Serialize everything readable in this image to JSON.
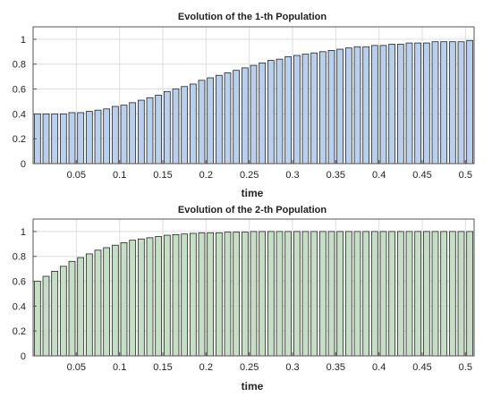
{
  "chart_data": [
    {
      "type": "bar",
      "title": "Evolution of the 1-th Population",
      "xlabel": "time",
      "ylabel": "",
      "xlim": [
        0,
        0.51
      ],
      "ylim": [
        0,
        1.1
      ],
      "x_ticks": [
        "0.05",
        "0.1",
        "0.15",
        "0.2",
        "0.25",
        "0.3",
        "0.35",
        "0.4",
        "0.45",
        "0.5"
      ],
      "y_ticks": [
        "0",
        "0.2",
        "0.4",
        "0.6",
        "0.8",
        "1"
      ],
      "grid": true,
      "bar_color": "#b8d0ee",
      "x": [
        0.0,
        0.01,
        0.02,
        0.03,
        0.04,
        0.05,
        0.06,
        0.07,
        0.08,
        0.09,
        0.1,
        0.11,
        0.12,
        0.13,
        0.14,
        0.15,
        0.16,
        0.17,
        0.18,
        0.19,
        0.2,
        0.21,
        0.22,
        0.23,
        0.24,
        0.25,
        0.26,
        0.27,
        0.28,
        0.29,
        0.3,
        0.31,
        0.32,
        0.33,
        0.34,
        0.35,
        0.36,
        0.37,
        0.38,
        0.39,
        0.4,
        0.41,
        0.42,
        0.43,
        0.44,
        0.45,
        0.46,
        0.47,
        0.48,
        0.49,
        0.5
      ],
      "values": [
        0.4,
        0.4,
        0.4,
        0.4,
        0.41,
        0.41,
        0.42,
        0.43,
        0.44,
        0.46,
        0.47,
        0.49,
        0.51,
        0.53,
        0.55,
        0.58,
        0.6,
        0.62,
        0.64,
        0.67,
        0.69,
        0.71,
        0.73,
        0.75,
        0.77,
        0.79,
        0.81,
        0.83,
        0.84,
        0.86,
        0.87,
        0.88,
        0.89,
        0.9,
        0.91,
        0.92,
        0.93,
        0.94,
        0.94,
        0.95,
        0.95,
        0.96,
        0.96,
        0.97,
        0.97,
        0.97,
        0.98,
        0.98,
        0.98,
        0.98,
        0.99
      ]
    },
    {
      "type": "bar",
      "title": "Evolution of the 2-th Population",
      "xlabel": "time",
      "ylabel": "",
      "xlim": [
        0,
        0.51
      ],
      "ylim": [
        0,
        1.1
      ],
      "x_ticks": [
        "0.05",
        "0.1",
        "0.15",
        "0.2",
        "0.25",
        "0.3",
        "0.35",
        "0.4",
        "0.45",
        "0.5"
      ],
      "y_ticks": [
        "0",
        "0.2",
        "0.4",
        "0.6",
        "0.8",
        "1"
      ],
      "grid": true,
      "bar_color": "#c4dfc4",
      "x": [
        0.0,
        0.01,
        0.02,
        0.03,
        0.04,
        0.05,
        0.06,
        0.07,
        0.08,
        0.09,
        0.1,
        0.11,
        0.12,
        0.13,
        0.14,
        0.15,
        0.16,
        0.17,
        0.18,
        0.19,
        0.2,
        0.21,
        0.22,
        0.23,
        0.24,
        0.25,
        0.26,
        0.27,
        0.28,
        0.29,
        0.3,
        0.31,
        0.32,
        0.33,
        0.34,
        0.35,
        0.36,
        0.37,
        0.38,
        0.39,
        0.4,
        0.41,
        0.42,
        0.43,
        0.44,
        0.45,
        0.46,
        0.47,
        0.48,
        0.49,
        0.5
      ],
      "values": [
        0.6,
        0.64,
        0.68,
        0.72,
        0.76,
        0.79,
        0.82,
        0.85,
        0.87,
        0.89,
        0.91,
        0.93,
        0.94,
        0.95,
        0.96,
        0.97,
        0.975,
        0.98,
        0.985,
        0.99,
        0.99,
        0.99,
        0.995,
        0.995,
        0.995,
        1.0,
        1.0,
        1.0,
        1.0,
        1.0,
        1.0,
        1.0,
        1.0,
        1.0,
        1.0,
        1.0,
        1.0,
        1.0,
        1.0,
        1.0,
        1.0,
        1.0,
        1.0,
        1.0,
        1.0,
        1.0,
        1.0,
        1.0,
        1.0,
        1.0,
        1.0
      ]
    }
  ]
}
